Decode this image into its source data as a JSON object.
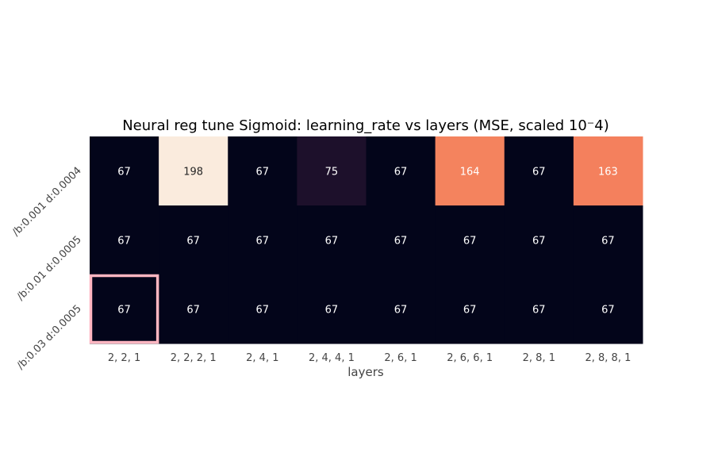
{
  "chart_data": {
    "type": "heatmap",
    "title": "Neural reg tune Sigmoid: learning_rate vs layers (MSE, scaled 10⁻4)",
    "xlabel": "layers",
    "ylabel": "",
    "x_categories": [
      "2, 2, 1",
      "2, 2, 2, 1",
      "2, 4, 1",
      "2, 4, 4, 1",
      "2, 6, 1",
      "2, 6, 6, 1",
      "2, 8, 1",
      "2, 8, 8, 1"
    ],
    "y_categories": [
      "/b:0.001 d:0.0004",
      "/b:0.01 d:0.0005",
      "/b:0.03 d:0.0005"
    ],
    "values": [
      [
        67,
        198,
        67,
        75,
        67,
        164,
        67,
        163
      ],
      [
        67,
        67,
        67,
        67,
        67,
        67,
        67,
        67
      ],
      [
        67,
        67,
        67,
        67,
        67,
        67,
        67,
        67
      ]
    ],
    "colormap": "rocket",
    "vmin": 67,
    "vmax": 198,
    "highlight_cell": {
      "row": 2,
      "col": 0,
      "color": "#ffb6c1"
    },
    "grid": false,
    "legend": "none"
  }
}
